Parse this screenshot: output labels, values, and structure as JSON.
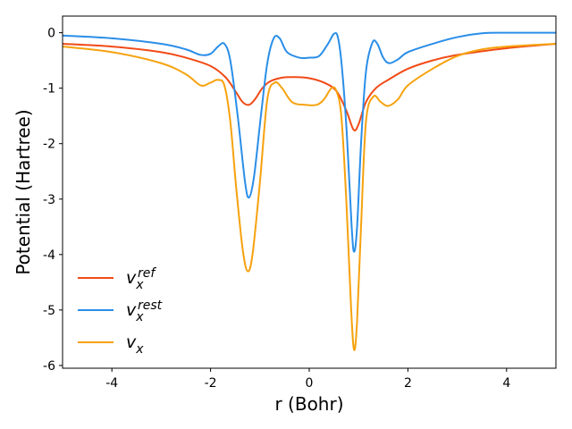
{
  "chart_data": {
    "type": "line",
    "title": "",
    "xlabel": "r (Bohr)",
    "ylabel": "Potential (Hartree)",
    "xlim": [
      -5,
      5
    ],
    "ylim": [
      -6.05,
      0.3
    ],
    "x_ticks": [
      -4,
      -2,
      0,
      2,
      4
    ],
    "x_tick_labels": [
      "-4",
      "-2",
      "0",
      "2",
      "4"
    ],
    "y_ticks": [
      0,
      -1,
      -2,
      -3,
      -4,
      -5,
      -6
    ],
    "y_tick_labels": [
      "0",
      "-1",
      "-2",
      "-3",
      "-4",
      "-5",
      "-6"
    ],
    "grid": false,
    "legend_position": "lower-left",
    "series": [
      {
        "name": "v_x^ref",
        "legend_base": "v",
        "legend_sub": "x",
        "legend_sup": "ref",
        "color": "#f14a16",
        "points": [
          [
            -5.0,
            -0.2
          ],
          [
            -4.0,
            -0.25
          ],
          [
            -3.0,
            -0.35
          ],
          [
            -2.5,
            -0.45
          ],
          [
            -2.0,
            -0.6
          ],
          [
            -1.7,
            -0.8
          ],
          [
            -1.5,
            -1.05
          ],
          [
            -1.35,
            -1.25
          ],
          [
            -1.22,
            -1.3
          ],
          [
            -1.1,
            -1.2
          ],
          [
            -0.95,
            -1.0
          ],
          [
            -0.8,
            -0.88
          ],
          [
            -0.55,
            -0.81
          ],
          [
            -0.3,
            -0.8
          ],
          [
            0.0,
            -0.82
          ],
          [
            0.3,
            -0.9
          ],
          [
            0.55,
            -1.05
          ],
          [
            0.75,
            -1.4
          ],
          [
            0.9,
            -1.75
          ],
          [
            1.0,
            -1.65
          ],
          [
            1.15,
            -1.25
          ],
          [
            1.35,
            -1.0
          ],
          [
            1.6,
            -0.85
          ],
          [
            2.0,
            -0.65
          ],
          [
            2.5,
            -0.5
          ],
          [
            3.0,
            -0.4
          ],
          [
            4.0,
            -0.28
          ],
          [
            5.0,
            -0.2
          ]
        ]
      },
      {
        "name": "v_x^rest",
        "legend_base": "v",
        "legend_sub": "x",
        "legend_sup": "rest",
        "color": "#2a8ee8",
        "points": [
          [
            -5.0,
            -0.05
          ],
          [
            -4.0,
            -0.1
          ],
          [
            -3.0,
            -0.2
          ],
          [
            -2.5,
            -0.3
          ],
          [
            -2.2,
            -0.4
          ],
          [
            -2.0,
            -0.38
          ],
          [
            -1.85,
            -0.25
          ],
          [
            -1.72,
            -0.2
          ],
          [
            -1.6,
            -0.5
          ],
          [
            -1.45,
            -1.5
          ],
          [
            -1.3,
            -2.7
          ],
          [
            -1.22,
            -2.97
          ],
          [
            -1.12,
            -2.6
          ],
          [
            -0.98,
            -1.5
          ],
          [
            -0.85,
            -0.55
          ],
          [
            -0.72,
            -0.1
          ],
          [
            -0.6,
            -0.1
          ],
          [
            -0.45,
            -0.35
          ],
          [
            -0.2,
            -0.45
          ],
          [
            0.0,
            -0.45
          ],
          [
            0.2,
            -0.42
          ],
          [
            0.38,
            -0.2
          ],
          [
            0.5,
            -0.02
          ],
          [
            0.58,
            -0.08
          ],
          [
            0.66,
            -0.6
          ],
          [
            0.76,
            -1.8
          ],
          [
            0.86,
            -3.5
          ],
          [
            0.91,
            -3.95
          ],
          [
            0.97,
            -3.5
          ],
          [
            1.05,
            -2.0
          ],
          [
            1.15,
            -0.7
          ],
          [
            1.28,
            -0.18
          ],
          [
            1.38,
            -0.2
          ],
          [
            1.5,
            -0.45
          ],
          [
            1.62,
            -0.55
          ],
          [
            1.8,
            -0.48
          ],
          [
            2.0,
            -0.35
          ],
          [
            2.5,
            -0.2
          ],
          [
            3.0,
            -0.08
          ],
          [
            3.5,
            -0.01
          ],
          [
            4.0,
            0.0
          ],
          [
            5.0,
            0.0
          ]
        ]
      },
      {
        "name": "v_x",
        "legend_base": "v",
        "legend_sub": "x",
        "legend_sup": "",
        "color": "#f6a20e",
        "points": [
          [
            -5.0,
            -0.25
          ],
          [
            -4.0,
            -0.35
          ],
          [
            -3.0,
            -0.55
          ],
          [
            -2.5,
            -0.75
          ],
          [
            -2.2,
            -0.95
          ],
          [
            -2.0,
            -0.9
          ],
          [
            -1.85,
            -0.85
          ],
          [
            -1.72,
            -0.95
          ],
          [
            -1.6,
            -1.6
          ],
          [
            -1.48,
            -2.8
          ],
          [
            -1.35,
            -3.9
          ],
          [
            -1.25,
            -4.3
          ],
          [
            -1.15,
            -4.0
          ],
          [
            -1.0,
            -2.7
          ],
          [
            -0.85,
            -1.2
          ],
          [
            -0.7,
            -0.9
          ],
          [
            -0.55,
            -1.0
          ],
          [
            -0.35,
            -1.25
          ],
          [
            -0.1,
            -1.3
          ],
          [
            0.15,
            -1.3
          ],
          [
            0.3,
            -1.2
          ],
          [
            0.45,
            -1.0
          ],
          [
            0.55,
            -1.05
          ],
          [
            0.65,
            -1.5
          ],
          [
            0.75,
            -3.0
          ],
          [
            0.85,
            -5.0
          ],
          [
            0.91,
            -5.72
          ],
          [
            0.97,
            -5.2
          ],
          [
            1.05,
            -3.5
          ],
          [
            1.15,
            -1.6
          ],
          [
            1.3,
            -1.15
          ],
          [
            1.45,
            -1.25
          ],
          [
            1.6,
            -1.32
          ],
          [
            1.8,
            -1.2
          ],
          [
            2.0,
            -0.95
          ],
          [
            2.5,
            -0.65
          ],
          [
            3.0,
            -0.42
          ],
          [
            3.5,
            -0.3
          ],
          [
            4.0,
            -0.25
          ],
          [
            5.0,
            -0.2
          ]
        ]
      }
    ]
  }
}
